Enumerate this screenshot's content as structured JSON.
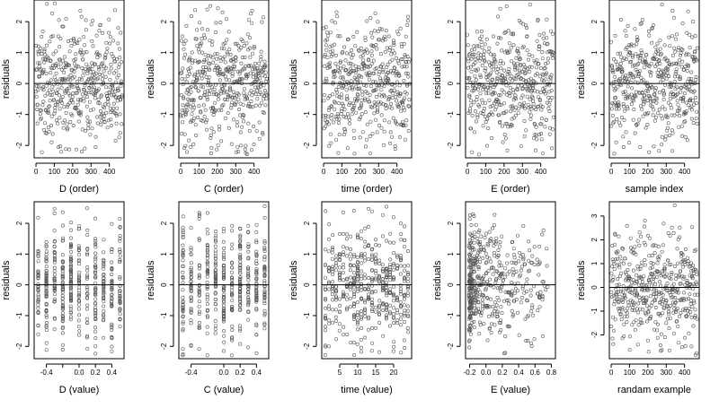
{
  "chart_data": [
    {
      "id": "p1",
      "type": "scatter",
      "xlabel": "D (order)",
      "ylabel": "residuals",
      "xlim": [
        -10,
        480
      ],
      "ylim": [
        -2.4,
        2.7
      ],
      "xticks": [
        0,
        100,
        200,
        300,
        400
      ],
      "xtick_labels": [
        "0",
        "100",
        "200",
        "300",
        "400"
      ],
      "yticks": [
        -2,
        -1,
        0,
        1,
        2
      ],
      "ytick_labels": [
        "-2",
        "-1",
        "0",
        "1",
        "2"
      ],
      "reference_line_y": 0,
      "n_points": 470,
      "x_mode": "index",
      "seed": 11
    },
    {
      "id": "p2",
      "type": "scatter",
      "xlabel": "C (order)",
      "ylabel": "residuals",
      "xlim": [
        -10,
        480
      ],
      "ylim": [
        -2.4,
        2.7
      ],
      "xticks": [
        0,
        100,
        200,
        300,
        400
      ],
      "xtick_labels": [
        "0",
        "100",
        "200",
        "300",
        "400"
      ],
      "yticks": [
        -2,
        -1,
        0,
        1,
        2
      ],
      "ytick_labels": [
        "-2",
        "-1",
        "0",
        "1",
        "2"
      ],
      "reference_line_y": 0,
      "n_points": 470,
      "x_mode": "index",
      "seed": 23
    },
    {
      "id": "p3",
      "type": "scatter",
      "xlabel": "time (order)",
      "ylabel": "residuals",
      "xlim": [
        -10,
        480
      ],
      "ylim": [
        -2.4,
        2.7
      ],
      "xticks": [
        0,
        100,
        200,
        300,
        400
      ],
      "xtick_labels": [
        "0",
        "100",
        "200",
        "300",
        "400"
      ],
      "yticks": [
        -2,
        -1,
        0,
        1,
        2
      ],
      "ytick_labels": [
        "-2",
        "-1",
        "0",
        "1",
        "2"
      ],
      "reference_line_y": 0,
      "n_points": 470,
      "x_mode": "index",
      "seed": 37
    },
    {
      "id": "p4",
      "type": "scatter",
      "xlabel": "E (order)",
      "ylabel": "residuals",
      "xlim": [
        -10,
        480
      ],
      "ylim": [
        -2.4,
        2.7
      ],
      "xticks": [
        0,
        100,
        200,
        300,
        400
      ],
      "xtick_labels": [
        "0",
        "100",
        "200",
        "300",
        "400"
      ],
      "yticks": [
        -2,
        -1,
        0,
        1,
        2
      ],
      "ytick_labels": [
        "-2",
        "-1",
        "0",
        "1",
        "2"
      ],
      "reference_line_y": 0,
      "n_points": 470,
      "x_mode": "index",
      "seed": 41
    },
    {
      "id": "p5",
      "type": "scatter",
      "xlabel": "sample index",
      "ylabel": "residuals",
      "xlim": [
        -10,
        480
      ],
      "ylim": [
        -2.4,
        2.7
      ],
      "xticks": [
        0,
        100,
        200,
        300,
        400
      ],
      "xtick_labels": [
        "0",
        "100",
        "200",
        "300",
        "400"
      ],
      "yticks": [
        -2,
        -1,
        0,
        1,
        2
      ],
      "ytick_labels": [
        "-2",
        "-1",
        "0",
        "1",
        "2"
      ],
      "reference_line_y": 0,
      "n_points": 470,
      "x_mode": "index",
      "seed": 53
    },
    {
      "id": "p6",
      "type": "scatter",
      "xlabel": "D (value)",
      "ylabel": "residuals",
      "xlim": [
        -0.55,
        0.55
      ],
      "ylim": [
        -2.4,
        2.7
      ],
      "xticks": [
        -0.4,
        -0.2,
        0,
        0.2,
        0.4
      ],
      "xtick_labels": [
        "-0.4",
        "",
        "0.0",
        "0.2",
        "0.4"
      ],
      "yticks": [
        -2,
        -1,
        0,
        1,
        2
      ],
      "ytick_labels": [
        "-2",
        "-1",
        "0",
        "1",
        "2"
      ],
      "reference_line_y": 0,
      "n_points": 470,
      "x_mode": "discrete",
      "x_levels": [
        -0.5,
        -0.4,
        -0.3,
        -0.2,
        -0.1,
        0.0,
        0.1,
        0.2,
        0.3,
        0.4,
        0.5
      ],
      "seed": 61
    },
    {
      "id": "p7",
      "type": "scatter",
      "xlabel": "C (value)",
      "ylabel": "residuals",
      "xlim": [
        -0.55,
        0.55
      ],
      "ylim": [
        -2.4,
        2.7
      ],
      "xticks": [
        -0.4,
        0,
        0.2,
        0.4
      ],
      "xtick_labels": [
        "-0.4",
        "0.0",
        "0.2",
        "0.4"
      ],
      "yticks": [
        -2,
        -1,
        0,
        1,
        2
      ],
      "ytick_labels": [
        "-2",
        "-1",
        "0",
        "1",
        "2"
      ],
      "reference_line_y": 0,
      "n_points": 470,
      "x_mode": "discrete",
      "x_levels": [
        -0.5,
        -0.4,
        -0.3,
        -0.2,
        -0.1,
        0.0,
        0.1,
        0.2,
        0.3,
        0.4,
        0.5
      ],
      "seed": 71
    },
    {
      "id": "p8",
      "type": "scatter",
      "xlabel": "time (value)",
      "ylabel": "residuals",
      "xlim": [
        0,
        25
      ],
      "ylim": [
        -2.4,
        2.7
      ],
      "xticks": [
        5,
        10,
        15,
        20
      ],
      "xtick_labels": [
        "5",
        "10",
        "15",
        "20"
      ],
      "yticks": [
        -2,
        -1,
        0,
        1,
        2
      ],
      "ytick_labels": [
        "-2",
        "-1",
        "0",
        "1",
        "2"
      ],
      "reference_line_y": 0,
      "n_points": 470,
      "x_mode": "discrete",
      "x_levels": [
        1,
        2,
        3,
        4,
        5,
        6,
        7,
        8,
        9,
        10,
        11,
        12,
        13,
        14,
        15,
        16,
        17,
        18,
        19,
        20,
        21,
        22,
        23,
        24
      ],
      "seed": 83
    },
    {
      "id": "p9",
      "type": "scatter",
      "xlabel": "E (value)",
      "ylabel": "residuals",
      "xlim": [
        -0.25,
        0.85
      ],
      "ylim": [
        -2.4,
        2.7
      ],
      "xticks": [
        -0.2,
        0,
        0.2,
        0.4,
        0.6,
        0.8
      ],
      "xtick_labels": [
        "-0.2",
        "0.0",
        "0.2",
        "0.4",
        "0.6",
        "0.8"
      ],
      "yticks": [
        -2,
        -1,
        0,
        1,
        2
      ],
      "ytick_labels": [
        "-2",
        "-1",
        "0",
        "1",
        "2"
      ],
      "reference_line_y": 0,
      "n_points": 470,
      "x_mode": "skewed",
      "seed": 97
    },
    {
      "id": "p10",
      "type": "scatter",
      "xlabel": "randam example",
      "ylabel": "residuals",
      "xlim": [
        -10,
        480
      ],
      "ylim": [
        -3.0,
        3.6
      ],
      "xticks": [
        0,
        100,
        200,
        300,
        400
      ],
      "xtick_labels": [
        "0",
        "100",
        "200",
        "300",
        "400"
      ],
      "yticks": [
        -2,
        -1,
        0,
        1,
        2,
        3
      ],
      "ytick_labels": [
        "-2",
        "-1",
        "0",
        "1",
        "2",
        "3"
      ],
      "reference_line_y": 0,
      "n_points": 470,
      "x_mode": "index",
      "y_spread": 1.1,
      "seed": 101
    }
  ]
}
